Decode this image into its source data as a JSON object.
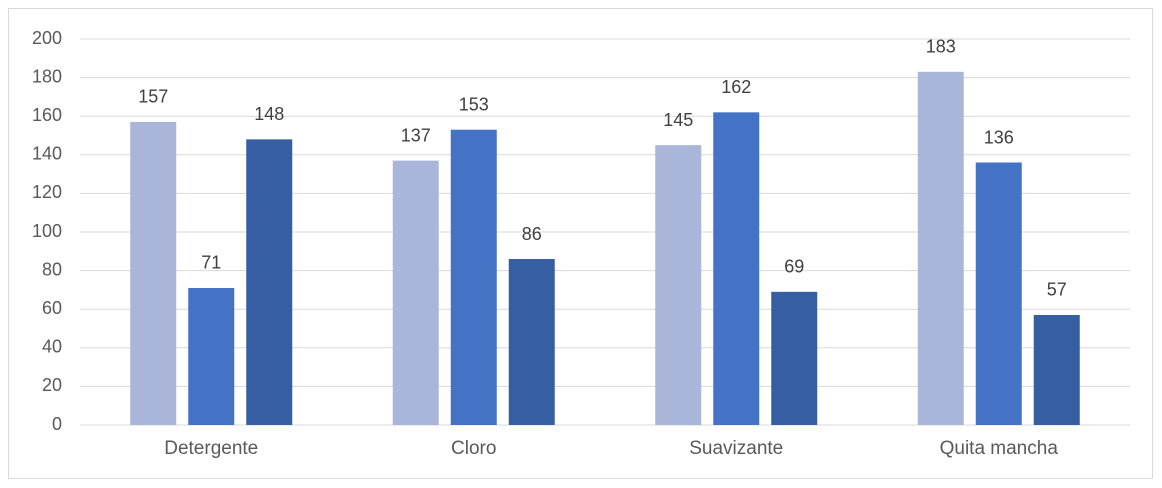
{
  "chart_data": {
    "type": "bar",
    "categories": [
      "Detergente",
      "Cloro",
      "Suavizante",
      "Quita mancha"
    ],
    "series": [
      {
        "color": "#a9b6da",
        "values": [
          157,
          137,
          145,
          183
        ]
      },
      {
        "color": "#4472c4",
        "values": [
          71,
          153,
          162,
          136
        ]
      },
      {
        "color": "#365ea3",
        "values": [
          148,
          86,
          69,
          57
        ]
      }
    ],
    "ylim": [
      0,
      200
    ],
    "yticks": [
      0,
      20,
      40,
      60,
      80,
      100,
      120,
      140,
      160,
      180,
      200
    ],
    "grid": true
  }
}
